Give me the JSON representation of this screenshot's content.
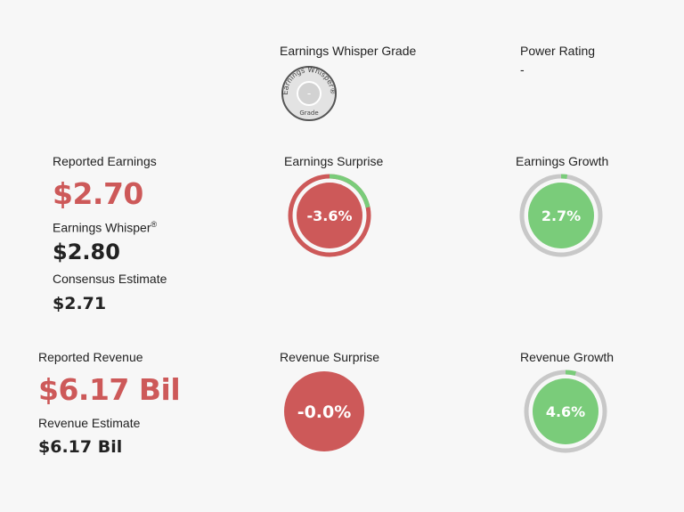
{
  "grade": {
    "title": "Earnings Whisper Grade",
    "value": "-",
    "badge_top": "Earnings Whisper",
    "badge_reg": "®",
    "badge_bottom": "Grade"
  },
  "power_rating": {
    "title": "Power Rating",
    "value": "-"
  },
  "earnings": {
    "reported_label": "Reported Earnings",
    "reported_value": "$2.70",
    "whisper_label": "Earnings Whisper",
    "whisper_reg": "®",
    "whisper_value": "$2.80",
    "consensus_label": "Consensus Estimate",
    "consensus_value": "$2.71"
  },
  "earnings_surprise": {
    "title": "Earnings Surprise",
    "value": "-3.6%",
    "fraction": 0.036
  },
  "earnings_growth": {
    "title": "Earnings Growth",
    "value": "2.7%",
    "fraction": 0.027
  },
  "revenue": {
    "reported_label": "Reported Revenue",
    "reported_value": "$6.17 Bil",
    "estimate_label": "Revenue Estimate",
    "estimate_value": "$6.17 Bil"
  },
  "revenue_surprise": {
    "title": "Revenue Surprise",
    "value": "-0.0%"
  },
  "revenue_growth": {
    "title": "Revenue Growth",
    "value": "4.6%",
    "fraction": 0.046
  },
  "colors": {
    "red": "#cd5959",
    "green": "#7acc7a",
    "gray": "#c8c8c8"
  }
}
